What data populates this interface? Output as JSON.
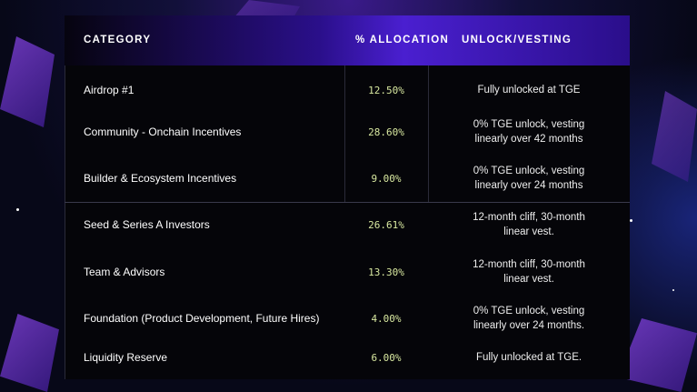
{
  "colors": {
    "accent": "#4a1fd0",
    "allocation_text": "#d8e8a0",
    "background": "#070818"
  },
  "table": {
    "headers": {
      "category": "CATEGORY",
      "allocation": "% ALLOCATION",
      "vesting": "UNLOCK/VESTING"
    },
    "rows": [
      {
        "category": "Airdrop #1",
        "allocation": "12.50%",
        "vesting": "Fully unlocked at TGE"
      },
      {
        "category": "Community - Onchain Incentives",
        "allocation": "28.60%",
        "vesting": "0% TGE unlock, vesting linearly over 42 months"
      },
      {
        "category": "Builder & Ecosystem Incentives",
        "allocation": "9.00%",
        "vesting": "0% TGE unlock, vesting linearly over 24 months"
      },
      {
        "category": "Seed & Series A Investors",
        "allocation": "26.61%",
        "vesting": "12-month cliff, 30-month linear vest."
      },
      {
        "category": "Team & Advisors",
        "allocation": "13.30%",
        "vesting": "12-month cliff, 30-month linear vest."
      },
      {
        "category": "Foundation (Product Development, Future Hires)",
        "allocation": "4.00%",
        "vesting": "0% TGE unlock, vesting linearly over 24 months."
      },
      {
        "category": "Liquidity Reserve",
        "allocation": "6.00%",
        "vesting": "Fully unlocked at TGE."
      }
    ]
  }
}
